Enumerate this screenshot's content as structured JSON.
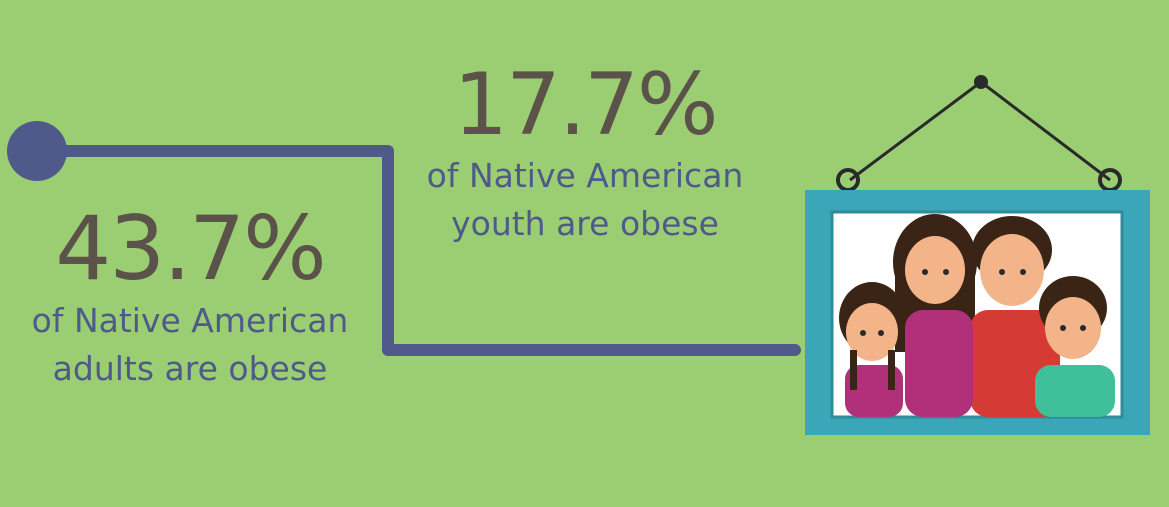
{
  "adult_stat": {
    "percent": "43.7%",
    "line1": "of Native American",
    "line2": "adults are obese"
  },
  "youth_stat": {
    "percent": "17.7%",
    "line1": "of Native American",
    "line2": "youth are obese"
  },
  "colors": {
    "background": "#9bce73",
    "line": "#4f5a8a",
    "percent_text": "#5b5249",
    "frame": "#3aa6b8"
  },
  "icons": {
    "connector_dot": "circle-node",
    "family_picture": "hanging-family-portrait"
  }
}
